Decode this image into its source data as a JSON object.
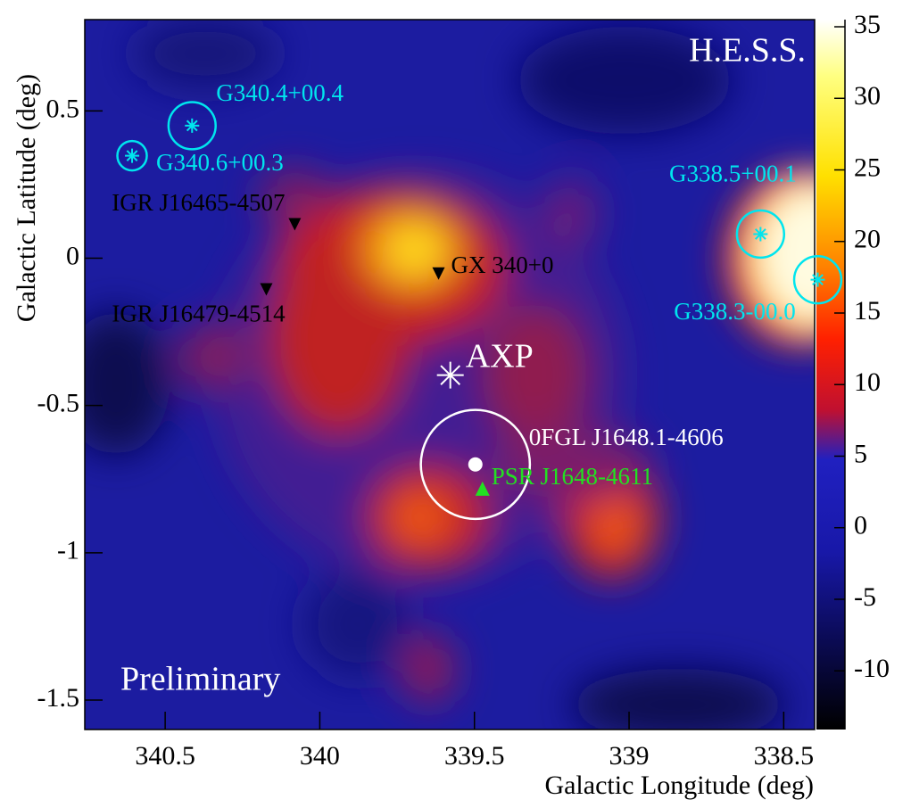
{
  "chart_data": {
    "type": "skymap",
    "x_label": "Galactic Longitude (deg)",
    "y_label": "Galactic Latitude (deg)",
    "xlim": [
      340.76,
      338.4
    ],
    "xticks": [
      340.5,
      340,
      339.5,
      339,
      338.5
    ],
    "ylim": [
      -1.6,
      0.81
    ],
    "yticks": [
      0.5,
      0,
      -0.5,
      -1,
      -1.5
    ],
    "zlim": [
      -14.1,
      35.5
    ],
    "zticks": [
      -10,
      -5,
      0,
      5,
      10,
      15,
      20,
      25,
      30,
      35
    ],
    "annotations": [
      "H.E.S.S.",
      "Preliminary"
    ],
    "sources": [
      {
        "name": "G340.4+00.4",
        "x": 340.413,
        "y": 0.45,
        "radius": 0.08,
        "marker": "asterisk",
        "color": "#00e5ee"
      },
      {
        "name": "G340.6+00.3",
        "x": 340.607,
        "y": 0.348,
        "radius": 0.05,
        "marker": "asterisk",
        "color": "#00e5ee"
      },
      {
        "name": "G338.5+00.1",
        "x": 338.575,
        "y": 0.082,
        "radius": 0.08,
        "marker": "asterisk",
        "color": "#00e5ee"
      },
      {
        "name": "G338.3-00.0",
        "x": 338.39,
        "y": -0.073,
        "radius": 0.08,
        "marker": "asterisk",
        "color": "#00e5ee"
      },
      {
        "name": "IGR J16465-4507",
        "x": 340.081,
        "y": 0.115,
        "marker": "triangle-down",
        "color": "#000000"
      },
      {
        "name": "IGR J16479-4514",
        "x": 340.173,
        "y": -0.106,
        "marker": "triangle-down",
        "color": "#000000"
      },
      {
        "name": "GX 340+0",
        "x": 339.616,
        "y": -0.052,
        "marker": "triangle-down",
        "color": "#000000"
      },
      {
        "name": "AXP",
        "x": 339.578,
        "y": -0.397,
        "marker": "asterisk",
        "color": "#ffffff"
      },
      {
        "name": "0FGL J1648.1-4606",
        "x": 339.497,
        "y": -0.7,
        "radius": 0.185,
        "marker": "dot",
        "color": "#ffffff"
      },
      {
        "name": "PSR J1648-4611",
        "x": 339.474,
        "y": -0.782,
        "marker": "triangle-up",
        "color": "#22e022"
      }
    ]
  }
}
